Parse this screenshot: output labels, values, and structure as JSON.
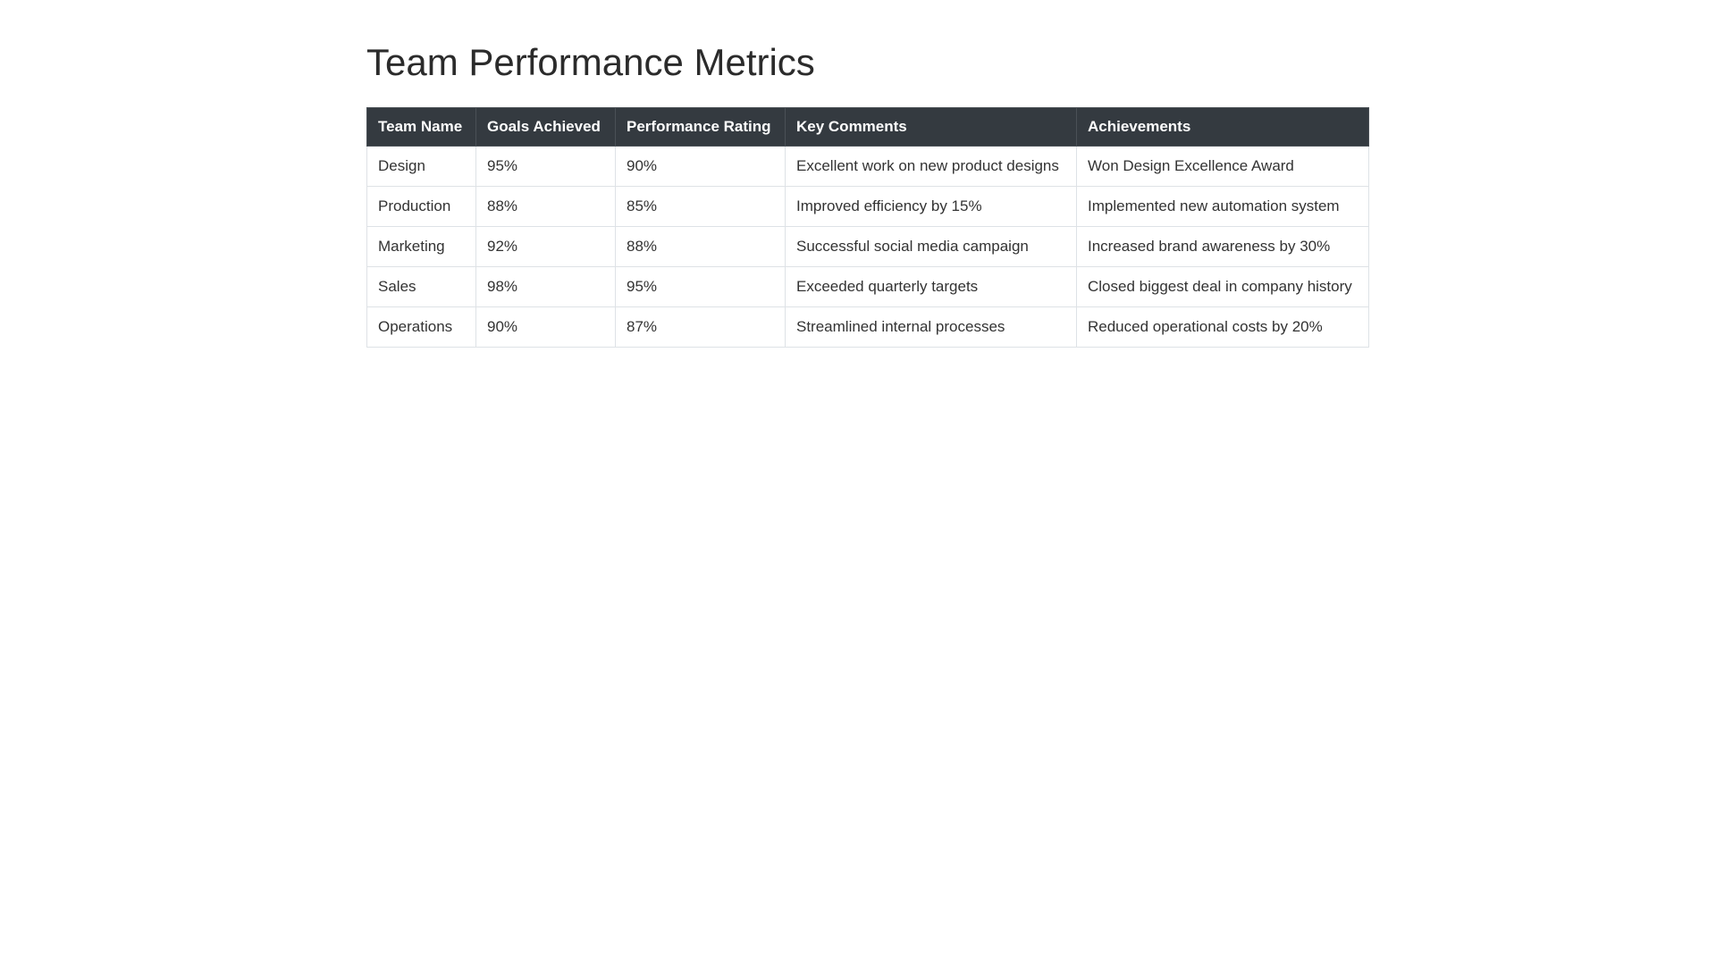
{
  "header": {
    "title": "Team Performance Metrics"
  },
  "table": {
    "columns": [
      "Team Name",
      "Goals Achieved",
      "Performance Rating",
      "Key Comments",
      "Achievements"
    ],
    "rows": [
      {
        "team": "Design",
        "goals": "95%",
        "rating": {
          "value": 90,
          "label": "90%"
        },
        "color": "#5cb85c",
        "comment": "Excellent work on new product designs",
        "achievement": "Won Design Excellence Award"
      },
      {
        "team": "Production",
        "goals": "88%",
        "rating": {
          "value": 85,
          "label": "85%"
        },
        "color": "#5bc0de",
        "comment": "Improved efficiency by 15%",
        "achievement": "Implemented new automation system"
      },
      {
        "team": "Marketing",
        "goals": "92%",
        "rating": {
          "value": 88,
          "label": "88%"
        },
        "color": "#f0ad4e",
        "comment": "Successful social media campaign",
        "achievement": "Increased brand awareness by 30%"
      },
      {
        "team": "Sales",
        "goals": "98%",
        "rating": {
          "value": 95,
          "label": "95%"
        },
        "color": "#d9534f",
        "comment": "Exceeded quarterly targets",
        "achievement": "Closed biggest deal in company history"
      },
      {
        "team": "Operations",
        "goals": "90%",
        "rating": {
          "value": 87,
          "label": "87%"
        },
        "color": "#0275d8",
        "comment": "Streamlined internal processes",
        "achievement": "Reduced operational costs by 20%"
      }
    ]
  }
}
